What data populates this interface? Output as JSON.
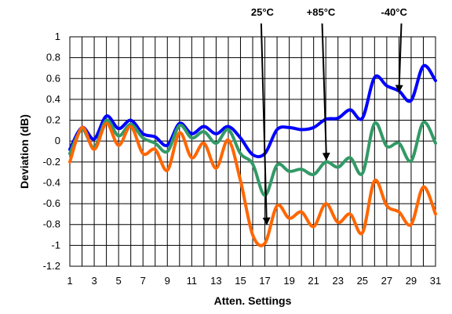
{
  "chart_data": {
    "type": "line",
    "xlabel": "Atten. Settings",
    "ylabel": "Deviation (dB)",
    "x": [
      1,
      2,
      3,
      4,
      5,
      6,
      7,
      8,
      9,
      10,
      11,
      12,
      13,
      14,
      15,
      16,
      17,
      18,
      19,
      20,
      21,
      22,
      23,
      24,
      25,
      26,
      27,
      28,
      29,
      30,
      31
    ],
    "xticks": [
      1,
      3,
      5,
      7,
      9,
      11,
      13,
      15,
      17,
      19,
      21,
      23,
      25,
      27,
      29,
      31
    ],
    "xlim": [
      1,
      31
    ],
    "ylim": [
      -1.2,
      1
    ],
    "yticks": [
      -1.2,
      -1,
      -0.8,
      -0.6,
      -0.4,
      -0.2,
      0,
      0.2,
      0.4,
      0.6,
      0.8,
      1
    ],
    "ytick_labels": [
      "-1.2",
      "-1",
      "-0.8",
      "-0.6",
      "-0.4",
      "-0.2",
      "0",
      "0.2",
      "0.4",
      "0.6",
      "0.8",
      "1"
    ],
    "grid": true,
    "series": [
      {
        "color": "#0000ff",
        "values": [
          -0.08,
          0.13,
          0.02,
          0.24,
          0.12,
          0.2,
          0.07,
          0.04,
          -0.04,
          0.17,
          0.07,
          0.14,
          0.07,
          0.14,
          0.03,
          -0.13,
          -0.12,
          0.11,
          0.13,
          0.11,
          0.13,
          0.21,
          0.22,
          0.3,
          0.22,
          0.61,
          0.53,
          0.48,
          0.39,
          0.72,
          0.58
        ]
      },
      {
        "color": "#339966",
        "values": [
          -0.12,
          0.11,
          -0.06,
          0.2,
          0.05,
          0.16,
          0.03,
          -0.02,
          -0.1,
          0.15,
          0.03,
          0.09,
          -0.02,
          0.11,
          -0.12,
          -0.22,
          -0.52,
          -0.23,
          -0.29,
          -0.27,
          -0.32,
          -0.2,
          -0.25,
          -0.16,
          -0.31,
          0.17,
          -0.05,
          -0.02,
          -0.19,
          0.18,
          -0.02
        ]
      },
      {
        "color": "#ff6600",
        "values": [
          -0.2,
          0.13,
          -0.08,
          0.17,
          -0.04,
          0.14,
          -0.12,
          -0.08,
          -0.28,
          0.08,
          -0.16,
          -0.02,
          -0.26,
          0.01,
          -0.38,
          -0.9,
          -0.98,
          -0.62,
          -0.74,
          -0.68,
          -0.82,
          -0.6,
          -0.78,
          -0.7,
          -0.88,
          -0.38,
          -0.62,
          -0.68,
          -0.8,
          -0.44,
          -0.7
        ]
      }
    ],
    "annotations": [
      {
        "text": "25°C",
        "label_x": 16.8,
        "label_y": 1.2,
        "arrow_from": [
          16.7,
          1.12
        ],
        "arrow_to": [
          17.15,
          -0.8
        ],
        "series_index": 2
      },
      {
        "text": "+85°C",
        "label_x": 21.6,
        "label_y": 1.2,
        "arrow_from": [
          21.7,
          1.12
        ],
        "arrow_to": [
          22.05,
          -0.18
        ],
        "series_index": 1
      },
      {
        "text": "-40°C",
        "label_x": 27.6,
        "label_y": 1.2,
        "arrow_from": [
          28.2,
          1.12
        ],
        "arrow_to": [
          28.0,
          0.47
        ],
        "series_index": 0
      }
    ]
  }
}
